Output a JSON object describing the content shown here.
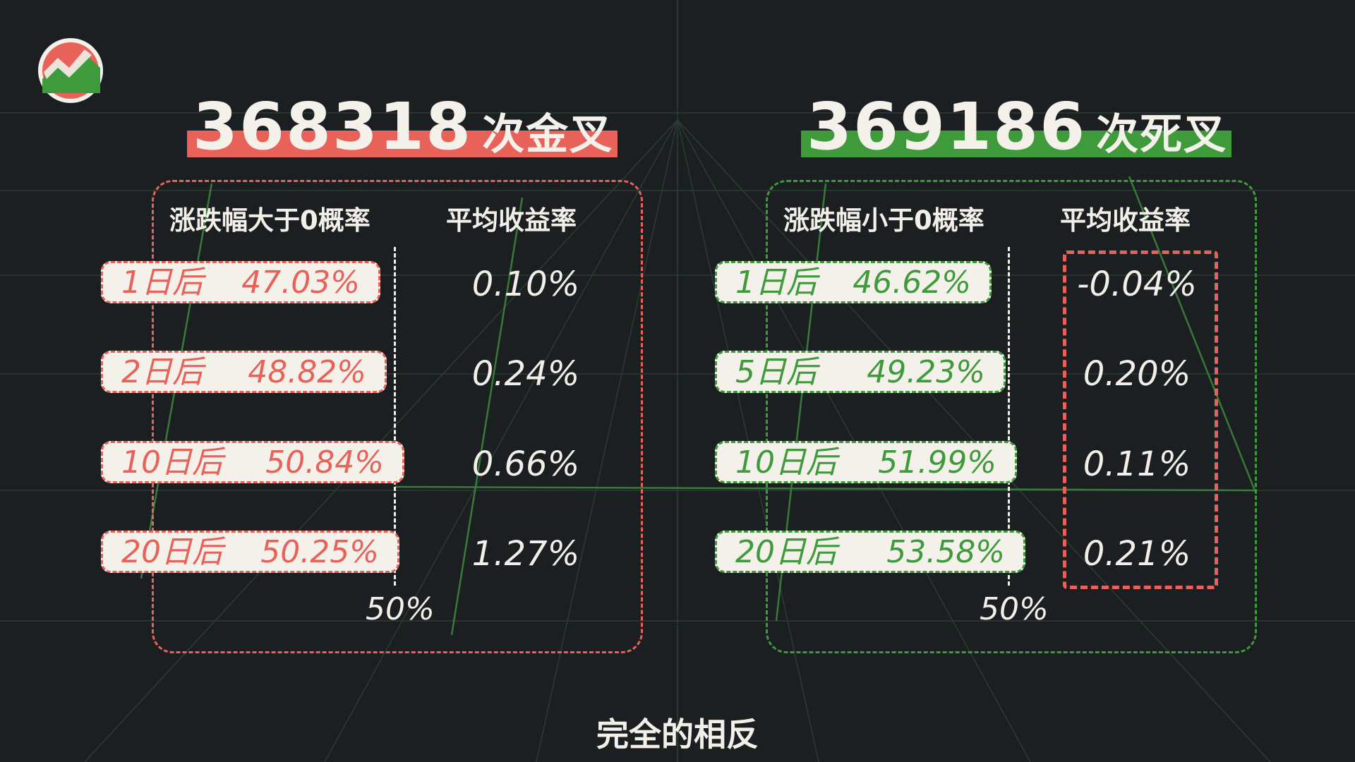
{
  "colors": {
    "background": "#1c1f22",
    "golden_accent": "#e8625a",
    "death_accent": "#3f9a3c",
    "pill_bg": "#f3f1ea",
    "text": "#f2efe8"
  },
  "golden_cross": {
    "count": "368318",
    "suffix": "次金叉",
    "col1_header": "涨跌幅大于0概率",
    "col2_header": "平均收益率",
    "rows": [
      {
        "label": "1日后",
        "value": "47.03%",
        "avg": "0.10%"
      },
      {
        "label": "2日后",
        "value": "48.82%",
        "avg": "0.24%"
      },
      {
        "label": "10日后",
        "value": "50.84%",
        "avg": "0.66%"
      },
      {
        "label": "20日后",
        "value": "50.25%",
        "avg": "1.27%"
      }
    ],
    "midline_label": "50%"
  },
  "death_cross": {
    "count": "369186",
    "suffix": "次死叉",
    "col1_header": "涨跌幅小于0概率",
    "col2_header": "平均收益率",
    "rows": [
      {
        "label": "1日后",
        "value": "46.62%",
        "avg": "-0.04%"
      },
      {
        "label": "5日后",
        "value": "49.23%",
        "avg": "0.20%"
      },
      {
        "label": "10日后",
        "value": "51.99%",
        "avg": "0.11%"
      },
      {
        "label": "20日后",
        "value": "53.58%",
        "avg": "0.21%"
      }
    ],
    "midline_label": "50%"
  },
  "caption": "完全的相反"
}
